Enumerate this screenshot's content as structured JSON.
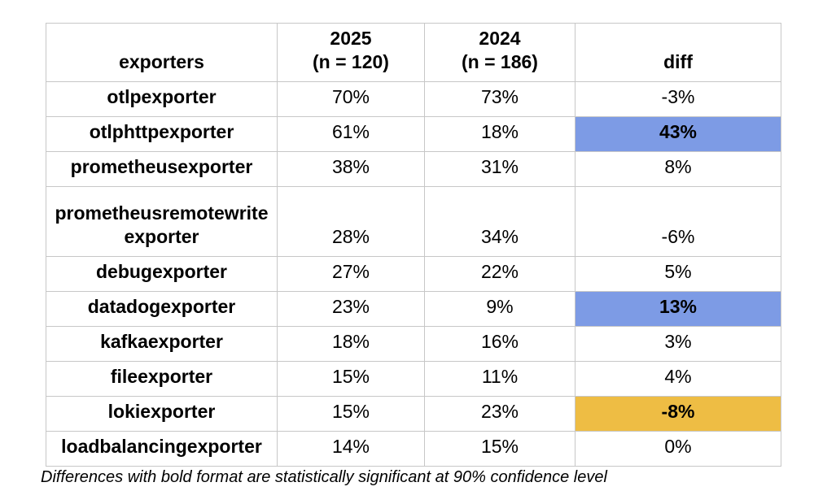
{
  "chart_data": {
    "type": "table",
    "columns": [
      "exporters",
      "2025\n(n = 120)",
      "2024\n(n = 186)",
      "diff"
    ],
    "rows": [
      {
        "name": "otlpexporter",
        "y2025": "70%",
        "y2024": "73%",
        "diff": "-3%",
        "significant": false,
        "highlight": "none"
      },
      {
        "name": "otlphttpexporter",
        "y2025": "61%",
        "y2024": "18%",
        "diff": "43%",
        "significant": true,
        "highlight": "sig_increase"
      },
      {
        "name": "prometheusexporter",
        "y2025": "38%",
        "y2024": "31%",
        "diff": "8%",
        "significant": false,
        "highlight": "none"
      },
      {
        "name": "prometheusremotewriteexporter",
        "y2025": "28%",
        "y2024": "34%",
        "diff": "-6%",
        "significant": false,
        "highlight": "none"
      },
      {
        "name": "debugexporter",
        "y2025": "27%",
        "y2024": "22%",
        "diff": "5%",
        "significant": false,
        "highlight": "none"
      },
      {
        "name": "datadogexporter",
        "y2025": "23%",
        "y2024": "9%",
        "diff": "13%",
        "significant": true,
        "highlight": "sig_increase"
      },
      {
        "name": "kafkaexporter",
        "y2025": "18%",
        "y2024": "16%",
        "diff": "3%",
        "significant": false,
        "highlight": "none"
      },
      {
        "name": "fileexporter",
        "y2025": "15%",
        "y2024": "11%",
        "diff": "4%",
        "significant": false,
        "highlight": "none"
      },
      {
        "name": "lokiexporter",
        "y2025": "15%",
        "y2024": "23%",
        "diff": "-8%",
        "significant": true,
        "highlight": "sig_decrease"
      },
      {
        "name": "loadbalancingexporter",
        "y2025": "14%",
        "y2024": "15%",
        "diff": "0%",
        "significant": false,
        "highlight": "none"
      }
    ],
    "footnote": "Differences with bold format are statistically significant at 90% confidence level",
    "layout_hints": {
      "value_format": "percent",
      "grid": true,
      "header_bold": true,
      "row_label_bold": true,
      "vertical_align": "bottom"
    }
  },
  "colors": {
    "sig_increase": "#7d9be5",
    "sig_decrease": "#eebd44",
    "border": "#c7c7c7",
    "text": "#000000",
    "background": "#ffffff"
  }
}
